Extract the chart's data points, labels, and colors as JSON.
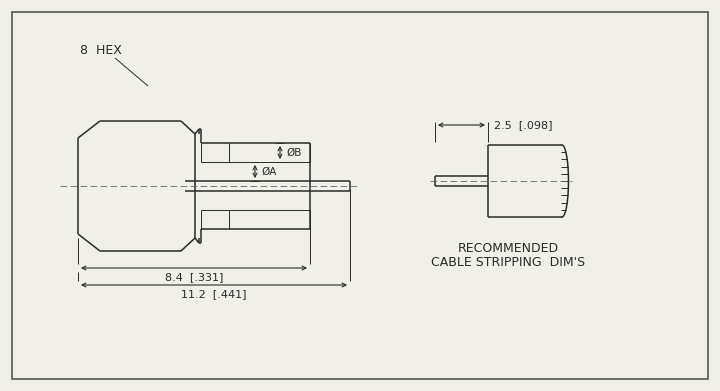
{
  "bg_color": "#f0efe8",
  "line_color": "#2a2a2a",
  "lw": 1.1,
  "tlw": 0.7,
  "text_color": "#2a2a2a",
  "label_8hex": "8  HEX",
  "label_phiA": "ØA",
  "label_phiB": "ØB",
  "label_84": "8.4  [.331]",
  "label_112": "11.2  [.441]",
  "label_25": "2.5  [.098]",
  "label_rec1": "RECOMMENDED",
  "label_rec2": "CABLE STRIPPING  DIM'S",
  "fs_label": 9,
  "fs_dim": 8,
  "fs_rec": 9
}
